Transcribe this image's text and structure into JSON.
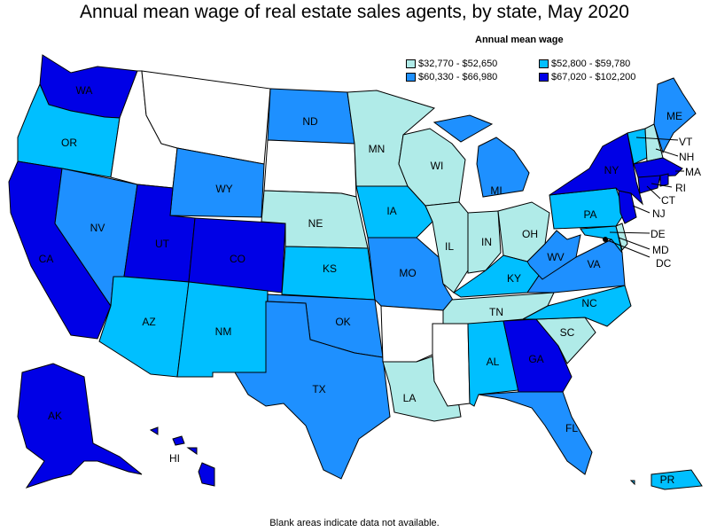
{
  "title": "Annual mean wage of real estate sales agents, by state, May 2020",
  "legend": {
    "title": "Annual mean wage",
    "items": [
      {
        "label": "$32,770 - $52,650",
        "color": "#b0ebe8"
      },
      {
        "label": "$52,800 - $59,780",
        "color": "#00bfff"
      },
      {
        "label": "$60,330 - $66,980",
        "color": "#1e90ff"
      },
      {
        "label": "$67,020 - $102,200",
        "color": "#0000e6"
      }
    ]
  },
  "footnote": "Blank areas indicate data not available.",
  "colors": {
    "no_data": "#ffffff",
    "tier1": "#b0ebe8",
    "tier2": "#00bfff",
    "tier3": "#1e90ff",
    "tier4": "#0000e6"
  },
  "states": {
    "WA": "WA",
    "OR": "OR",
    "CA": "CA",
    "NV": "NV",
    "AZ": "AZ",
    "UT": "UT",
    "CO": "CO",
    "NM": "NM",
    "WY": "WY",
    "ND": "ND",
    "NE": "NE",
    "KS": "KS",
    "OK": "OK",
    "TX": "TX",
    "MN": "MN",
    "IA": "IA",
    "MO": "MO",
    "WI": "WI",
    "IL": "IL",
    "MI": "MI",
    "IN": "IN",
    "OH": "OH",
    "KY": "KY",
    "TN": "TN",
    "AL": "AL",
    "GA": "GA",
    "FL": "FL",
    "SC": "SC",
    "NC": "NC",
    "VA": "VA",
    "WV": "WV",
    "PA": "PA",
    "NY": "NY",
    "ME": "ME",
    "VT": "VT",
    "NH": "NH",
    "MA": "MA",
    "RI": "RI",
    "CT": "CT",
    "NJ": "NJ",
    "DE": "DE",
    "MD": "MD",
    "DC": "DC",
    "LA": "LA",
    "AK": "AK",
    "HI": "HI",
    "PR": "PR"
  }
}
